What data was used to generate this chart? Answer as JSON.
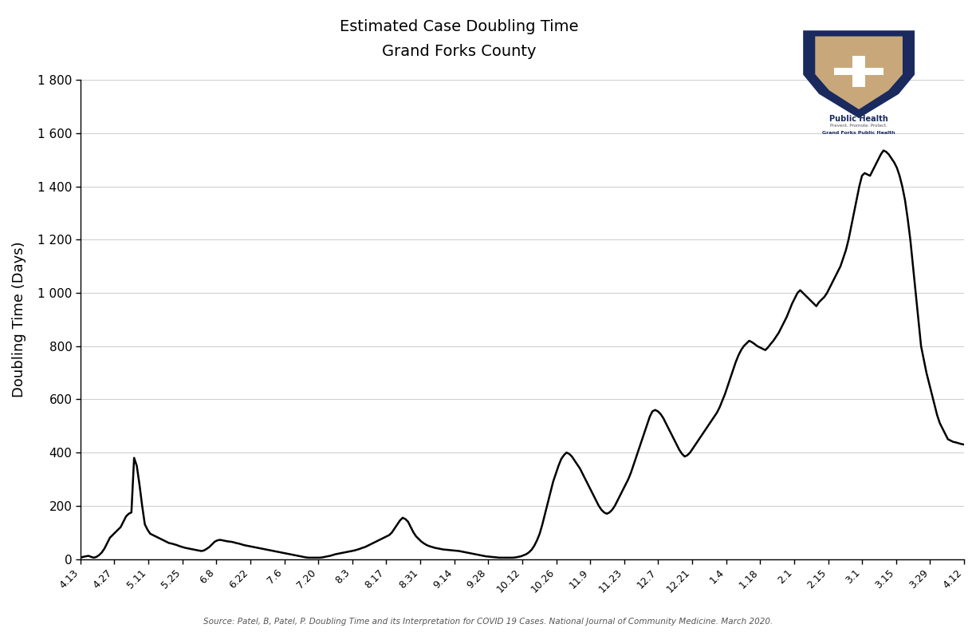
{
  "title_line1": "Estimated Case Doubling Time",
  "title_line2": "Grand Forks County",
  "ylabel": "Doubling Time (Days)",
  "source_text": "Source: Patel, B, Patel, P. Doubling Time and its Interpretation for COVID 19 Cases. National Journal of Community Medicine. March 2020.",
  "yticks": [
    0,
    200,
    400,
    600,
    800,
    1000,
    1200,
    1400,
    1600,
    1800
  ],
  "ytick_labels": [
    "0",
    "200",
    "400",
    "600",
    "800",
    "1 000",
    "1 200",
    "1 400",
    "1 600",
    "1 800"
  ],
  "xtick_labels": [
    "4.13",
    "4.27",
    "5.11",
    "5.25",
    "6.8",
    "6.22",
    "7.6",
    "7.20",
    "8.3",
    "8.17",
    "8.31",
    "9.14",
    "9.28",
    "10.12",
    "10.26",
    "11.9",
    "11.23",
    "12.7",
    "12.21",
    "1.4",
    "1.18",
    "2.1",
    "2.15",
    "3.1",
    "3.15",
    "3.29",
    "4.12"
  ],
  "ylim": [
    0,
    1800
  ],
  "background_color": "#ffffff",
  "line_color": "#000000",
  "grid_color": "#d0d0d0",
  "logo_shield_outer": "#1a2a5e",
  "logo_shield_tan": "#c8a87a",
  "logo_text_color": "#1a2a5e",
  "y_values": [
    5,
    8,
    10,
    12,
    8,
    5,
    8,
    15,
    25,
    40,
    60,
    80,
    90,
    100,
    110,
    120,
    140,
    160,
    170,
    175,
    380,
    350,
    280,
    200,
    130,
    110,
    95,
    90,
    85,
    80,
    75,
    70,
    65,
    60,
    58,
    55,
    52,
    48,
    45,
    42,
    40,
    38,
    36,
    34,
    32,
    30,
    32,
    38,
    45,
    55,
    65,
    70,
    72,
    70,
    68,
    66,
    65,
    63,
    60,
    58,
    55,
    52,
    50,
    48,
    46,
    44,
    42,
    40,
    38,
    36,
    34,
    32,
    30,
    28,
    26,
    24,
    22,
    20,
    18,
    16,
    14,
    12,
    10,
    8,
    6,
    5,
    5,
    5,
    5,
    5,
    6,
    8,
    10,
    12,
    15,
    18,
    20,
    22,
    24,
    26,
    28,
    30,
    32,
    35,
    38,
    42,
    45,
    50,
    55,
    60,
    65,
    70,
    75,
    80,
    85,
    90,
    100,
    115,
    130,
    145,
    155,
    150,
    140,
    120,
    100,
    85,
    75,
    65,
    58,
    52,
    48,
    45,
    42,
    40,
    38,
    36,
    35,
    34,
    33,
    32,
    31,
    30,
    28,
    26,
    24,
    22,
    20,
    18,
    16,
    14,
    12,
    10,
    9,
    8,
    7,
    6,
    5,
    5,
    5,
    5,
    5,
    5,
    6,
    8,
    10,
    14,
    18,
    25,
    35,
    50,
    70,
    95,
    130,
    170,
    210,
    250,
    290,
    320,
    350,
    375,
    390,
    400,
    395,
    385,
    370,
    355,
    340,
    320,
    300,
    280,
    260,
    240,
    220,
    200,
    185,
    175,
    170,
    175,
    185,
    200,
    220,
    240,
    260,
    280,
    300,
    325,
    355,
    385,
    415,
    445,
    475,
    505,
    535,
    555,
    560,
    555,
    545,
    530,
    510,
    490,
    470,
    450,
    430,
    410,
    395,
    385,
    390,
    400,
    415,
    430,
    445,
    460,
    475,
    490,
    505,
    520,
    535,
    550,
    570,
    595,
    620,
    650,
    680,
    710,
    740,
    765,
    785,
    800,
    810,
    820,
    815,
    808,
    800,
    795,
    790,
    785,
    795,
    808,
    820,
    835,
    850,
    870,
    890,
    910,
    935,
    960,
    980,
    1000,
    1010,
    1000,
    990,
    980,
    970,
    960,
    950,
    965,
    975,
    985,
    1000,
    1020,
    1040,
    1060,
    1080,
    1100,
    1130,
    1160,
    1200,
    1250,
    1300,
    1350,
    1400,
    1440,
    1450,
    1445,
    1440,
    1460,
    1480,
    1500,
    1520,
    1535,
    1530,
    1520,
    1505,
    1490,
    1470,
    1440,
    1400,
    1350,
    1280,
    1200,
    1100,
    1000,
    900,
    800,
    750,
    700,
    660,
    620,
    580,
    540,
    510,
    490,
    470,
    450,
    445,
    440,
    438,
    435,
    432,
    430
  ]
}
